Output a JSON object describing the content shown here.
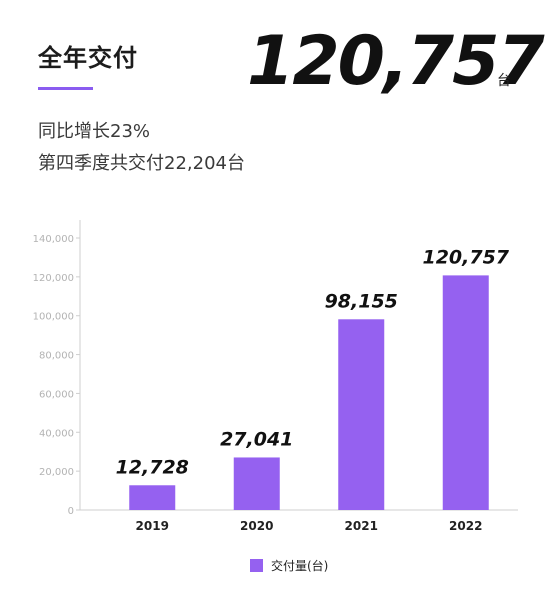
{
  "header": {
    "title": "全年交付",
    "total_value": "120,757",
    "total_unit": "台",
    "growth_text": "同比增长23%",
    "q4_text": "第四季度共交付22,204台"
  },
  "colors": {
    "accent": "#8a5cf0",
    "bar": "#9561f0"
  },
  "chart_data": {
    "type": "bar",
    "categories": [
      "2019",
      "2020",
      "2021",
      "2022"
    ],
    "series": [
      {
        "name": "交付量(台)",
        "values": [
          12728,
          27041,
          98155,
          120757
        ]
      }
    ],
    "data_labels": [
      "12,728",
      "27,041",
      "98,155",
      "120,757"
    ],
    "y_ticks": [
      0,
      20000,
      40000,
      60000,
      80000,
      100000,
      120000,
      140000
    ],
    "y_tick_labels": [
      "0",
      "20,000",
      "40,000",
      "60,000",
      "80,000",
      "100,000",
      "120,000",
      "140,000"
    ],
    "ylim": [
      0,
      140000
    ],
    "grid": false,
    "legend_position": "bottom"
  }
}
